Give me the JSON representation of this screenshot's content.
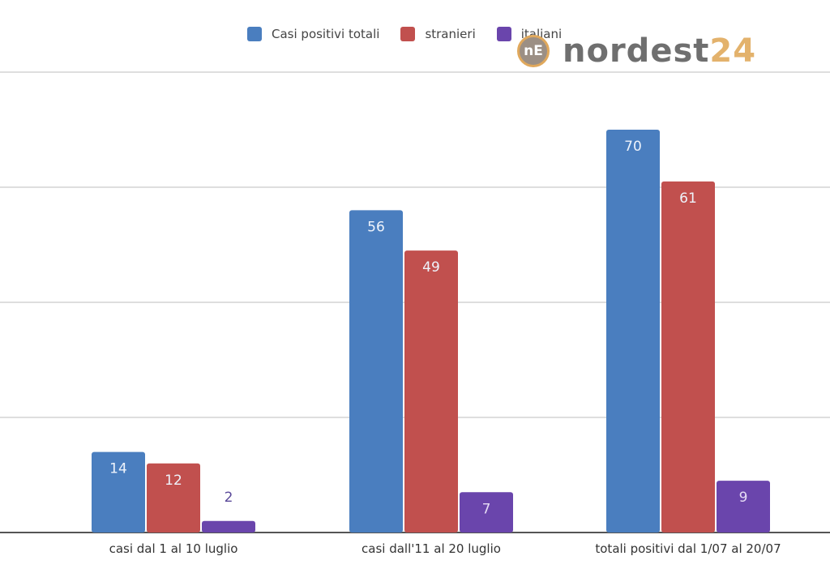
{
  "chart_data": {
    "type": "bar",
    "title": "",
    "xlabel": "",
    "ylabel": "",
    "ylim": [
      0,
      80
    ],
    "grid": true,
    "gridlines": [
      0,
      20,
      40,
      60,
      80
    ],
    "y_tick_labels_visible": false,
    "legend_position": "top-center",
    "categories": [
      "casi dal 1 al 10 luglio",
      "casi dall'11 al 20 luglio",
      "totali positivi dal 1/07 al 20/07"
    ],
    "series": [
      {
        "name": "Casi positivi totali",
        "color": "#4a7ebf",
        "values": [
          14,
          56,
          70
        ]
      },
      {
        "name": "stranieri",
        "color": "#c1504e",
        "values": [
          12,
          49,
          61
        ]
      },
      {
        "name": "italiani",
        "color": "#6a45ac",
        "values": [
          2,
          7,
          9
        ]
      }
    ]
  },
  "legend": {
    "items": [
      {
        "label": "Casi positivi totali",
        "color": "#4a7ebf"
      },
      {
        "label": "stranieri",
        "color": "#c1504e"
      },
      {
        "label": "italiani",
        "color": "#6a45ac"
      }
    ]
  },
  "watermark": {
    "badge": "nE",
    "text_main": "nordest",
    "text_accent": "24"
  }
}
